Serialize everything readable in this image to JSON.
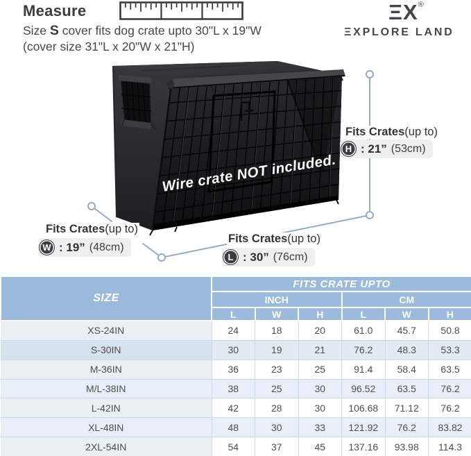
{
  "header": {
    "title": "Measure",
    "size_prefix": "Size ",
    "size_letter": "S",
    "size_suffix": " cover fits dog crate upto 30\"L x 19\"W",
    "cover_size_line": "(cover size 31\"L x 20\"W x 21\"H)"
  },
  "brand": {
    "mark": "ΞX",
    "registered": "®",
    "name": "ΞXPLORE LAND"
  },
  "illustration": {
    "note": "Wire crate NOT included."
  },
  "dimensions": {
    "label_bold": "Fits Crates",
    "label_rest": "(up to)",
    "height": {
      "letter": "H",
      "inches": ": 21”",
      "cm": "(53cm)"
    },
    "width": {
      "letter": "W",
      "inches": ": 19”",
      "cm": "(48cm)"
    },
    "length": {
      "letter": "L",
      "inches": ": 30”",
      "cm": "(76cm)"
    }
  },
  "table": {
    "size_header": "SIZE",
    "group_header": "FITS CRATE UPTO",
    "unit_inch": "INCH",
    "unit_cm": "CM",
    "col_headers": [
      "L",
      "W",
      "H",
      "L",
      "W",
      "H"
    ],
    "rows": [
      {
        "size": "XS-24IN",
        "highlight": false,
        "values": [
          "24",
          "18",
          "20",
          "61.0",
          "45.7",
          "50.8"
        ]
      },
      {
        "size": "S-30IN",
        "highlight": true,
        "values": [
          "30",
          "19",
          "21",
          "76.2",
          "48.3",
          "53.3"
        ]
      },
      {
        "size": "M-36IN",
        "highlight": false,
        "values": [
          "36",
          "23",
          "25",
          "91.4",
          "58.4",
          "63.5"
        ]
      },
      {
        "size": "M/L-38IN",
        "highlight": false,
        "values": [
          "38",
          "25",
          "30",
          "96.52",
          "63.5",
          "76.2"
        ]
      },
      {
        "size": "L-42IN",
        "highlight": false,
        "values": [
          "42",
          "28",
          "30",
          "106.68",
          "71.12",
          "76.2"
        ]
      },
      {
        "size": "XL-48IN",
        "highlight": false,
        "values": [
          "48",
          "30",
          "33",
          "121.92",
          "76.2",
          "83.82"
        ]
      },
      {
        "size": "2XL-54IN",
        "highlight": false,
        "values": [
          "54",
          "37",
          "45",
          "137.16",
          "93.98",
          "114.3"
        ]
      }
    ]
  },
  "colors": {
    "header_blue": "#9cbadb",
    "row_tint": "#e9eff8",
    "highlight_tint": "#d7e2ef",
    "dimension_line": "#94a9c3",
    "badge_dark": "#3a3c42"
  }
}
